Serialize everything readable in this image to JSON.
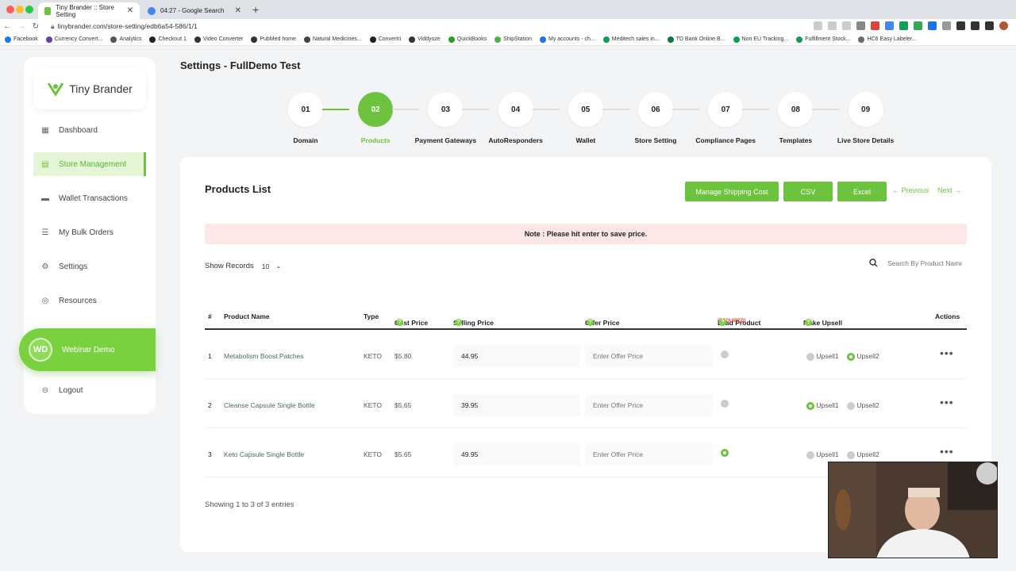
{
  "browser": {
    "tabs": [
      {
        "title": "Tiny Brander :: Store Setting",
        "active": true
      },
      {
        "title": "04:27 - Google Search",
        "active": false
      }
    ],
    "url": "tinybrander.com/store-setting/edb6a54-586/1/1",
    "bookmarks": [
      "Facebook",
      "Currency Convert...",
      "Analytics",
      "Checkout 1",
      "Video Converter",
      "PubMed home",
      "Natural Medicines...",
      "Convertri",
      "Viddyoze",
      "QuickBooks",
      "ShipStation",
      "My accounts - ch...",
      "Meditech sales in...",
      "TD Bank Online B...",
      "Non EU Tracking...",
      "Fulfillment Stock...",
      "HC6 Easy Labeler..."
    ]
  },
  "sidebar": {
    "logo": "Tiny Brander",
    "items": [
      {
        "label": "Dashboard",
        "icon": "grid-icon"
      },
      {
        "label": "Store Management",
        "icon": "store-icon",
        "active": true
      },
      {
        "label": "Wallet Transactions",
        "icon": "wallet-icon"
      },
      {
        "label": "My Bulk Orders",
        "icon": "list-icon"
      },
      {
        "label": "Settings",
        "icon": "gear-icon"
      },
      {
        "label": "Resources",
        "icon": "resources-icon"
      }
    ],
    "user": {
      "initials": "WD",
      "name": "Webinar Demo"
    },
    "logout": "Logout"
  },
  "page": {
    "title": "Settings - FullDemo Test"
  },
  "steps": [
    {
      "num": "01",
      "label": "Domain"
    },
    {
      "num": "02",
      "label": "Products",
      "current": true
    },
    {
      "num": "03",
      "label": "Payment Gateways"
    },
    {
      "num": "04",
      "label": "AutoResponders"
    },
    {
      "num": "05",
      "label": "Wallet"
    },
    {
      "num": "06",
      "label": "Store Setting"
    },
    {
      "num": "07",
      "label": "Compliance Pages"
    },
    {
      "num": "08",
      "label": "Templates"
    },
    {
      "num": "09",
      "label": "Live Store Details"
    }
  ],
  "products": {
    "title": "Products List",
    "buttons": {
      "shipping": "Manage Shipping Cost",
      "csv": "CSV",
      "excel": "Excel",
      "previous": "Previous",
      "next": "Next"
    },
    "note": "Note : Please hit enter to save price.",
    "show_records_label": "Show Records",
    "show_records_value": "10",
    "search_placeholder": "Search By Product Name",
    "columns": {
      "num": "#",
      "name": "Product Name",
      "type": "Type",
      "cost": "Cost Price",
      "selling": "Selling Price",
      "offer": "Offer Price",
      "lead": "Lead Product",
      "lead_req": "(REQUIRED)",
      "upsell": "Make Upsell",
      "actions": "Actions"
    },
    "rows": [
      {
        "num": "1",
        "name": "Metabolism Boost Patches",
        "type": "KETO",
        "cost": "$5.80",
        "selling": "44.95",
        "offer_placeholder": "Enter Offer Price",
        "lead": false,
        "upsell1": false,
        "upsell2": true,
        "upsell1_label": "Upsell1",
        "upsell2_label": "Upsell2"
      },
      {
        "num": "2",
        "name": "Cleanse Capsule Single Bottle",
        "type": "KETO",
        "cost": "$5.65",
        "selling": "39.95",
        "offer_placeholder": "Enter Offer Price",
        "lead": false,
        "upsell1": true,
        "upsell2": false,
        "upsell1_label": "Upsell1",
        "upsell2_label": "Upsell2"
      },
      {
        "num": "3",
        "name": "Keto Capsule Single Bottle",
        "type": "KETO",
        "cost": "$5.65",
        "selling": "49.95",
        "offer_placeholder": "Enter Offer Price",
        "lead": true,
        "upsell1": false,
        "upsell2": false,
        "upsell1_label": "Upsell1",
        "upsell2_label": "Upsell2"
      }
    ],
    "entries": "Showing 1 to 3 of 3 entries"
  },
  "colors": {
    "accent": "#6dc33d",
    "note_bg": "#fde7e7",
    "required": "#e0483d"
  }
}
